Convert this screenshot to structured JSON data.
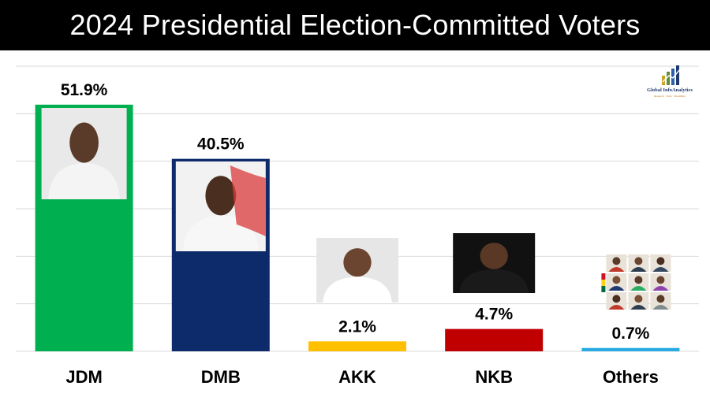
{
  "title": "2024 Presidential Election-Committed Voters",
  "logo": {
    "name": "Global InfoAnalytics",
    "tagline": "Research · Data · Modelling"
  },
  "colors": {
    "JDM": "#00b050",
    "DMB": "#0d2b6b",
    "AKK": "#ffc000",
    "NKB": "#c00000",
    "Others": "#29abe2",
    "gridline": "#d9d9d9"
  },
  "chart_data": {
    "type": "bar",
    "title": "2024 Presidential Election-Committed Voters",
    "categories": [
      "JDM",
      "DMB",
      "AKK",
      "NKB",
      "Others"
    ],
    "values": [
      51.9,
      40.5,
      2.1,
      4.7,
      0.7
    ],
    "data_labels": [
      "51.9%",
      "40.5%",
      "2.1%",
      "4.7%",
      "0.7%"
    ],
    "xlabel": "",
    "ylabel": "",
    "ylim": [
      0,
      60
    ],
    "grid": true,
    "legend": "none",
    "candidate_photos": [
      "portrait",
      "portrait",
      "portrait",
      "portrait",
      "montage"
    ]
  }
}
